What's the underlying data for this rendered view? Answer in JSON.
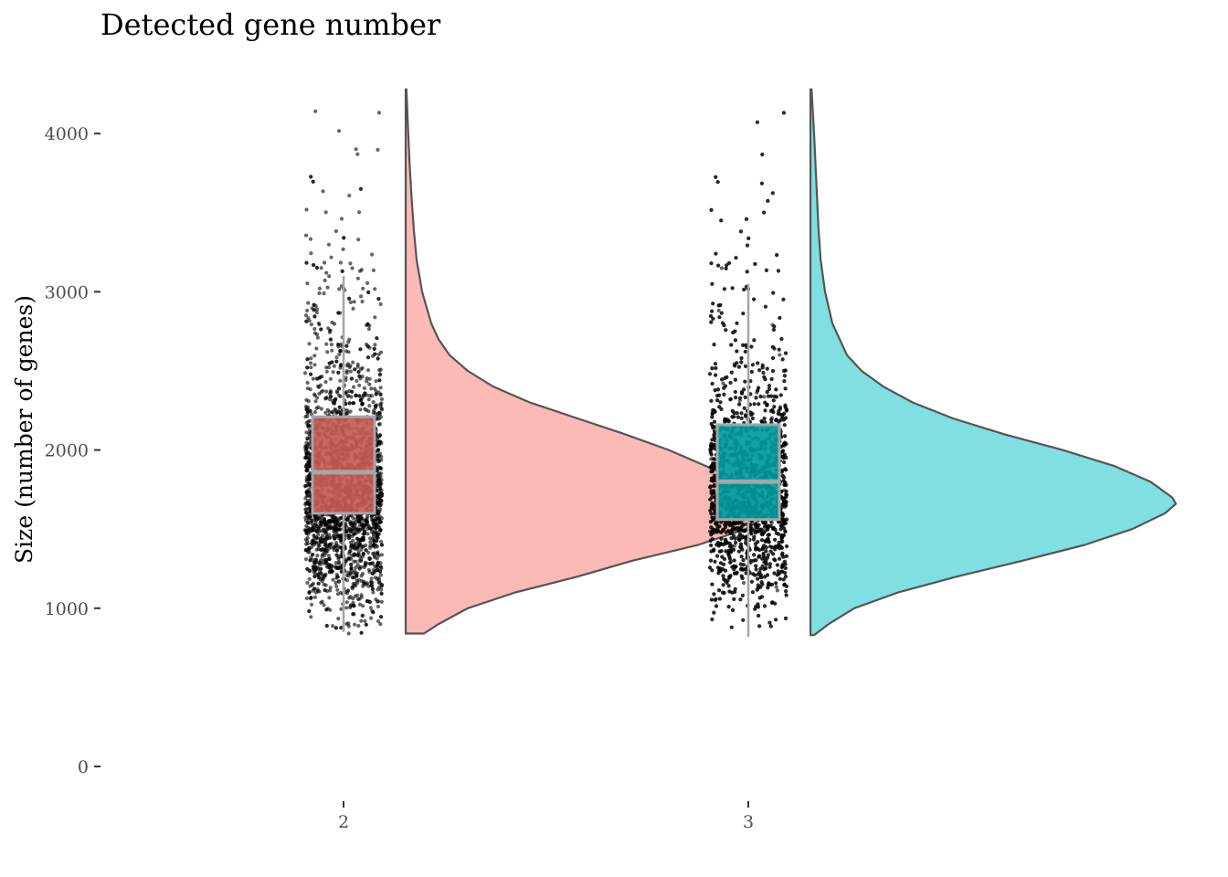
{
  "chart_data": {
    "type": "raincloud",
    "title": "Detected gene number",
    "xlabel": "",
    "ylabel": "Size (number of genes)",
    "ylim": [
      0,
      4300
    ],
    "yticks": [
      0,
      1000,
      2000,
      3000,
      4000
    ],
    "grid": false,
    "legend": "none",
    "categories": [
      "2",
      "3"
    ],
    "series": [
      {
        "category": "2",
        "color": "#f8766d",
        "box_fill": "#c65c56",
        "min": 850,
        "q1": 1600,
        "median": 1860,
        "q3": 2210,
        "max": 3100,
        "range": [
          840,
          4280
        ],
        "density": [
          [
            840,
            0.05
          ],
          [
            900,
            0.09
          ],
          [
            1000,
            0.17
          ],
          [
            1100,
            0.3
          ],
          [
            1200,
            0.47
          ],
          [
            1300,
            0.62
          ],
          [
            1400,
            0.8
          ],
          [
            1500,
            0.93
          ],
          [
            1600,
            1.0
          ],
          [
            1700,
            0.98
          ],
          [
            1800,
            0.92
          ],
          [
            1900,
            0.82
          ],
          [
            2000,
            0.72
          ],
          [
            2100,
            0.6
          ],
          [
            2200,
            0.47
          ],
          [
            2300,
            0.34
          ],
          [
            2400,
            0.24
          ],
          [
            2500,
            0.17
          ],
          [
            2600,
            0.12
          ],
          [
            2700,
            0.09
          ],
          [
            2800,
            0.07
          ],
          [
            3000,
            0.045
          ],
          [
            3200,
            0.03
          ],
          [
            3400,
            0.022
          ],
          [
            3600,
            0.016
          ],
          [
            3800,
            0.011
          ],
          [
            4000,
            0.007
          ],
          [
            4280,
            0.002
          ]
        ]
      },
      {
        "category": "3",
        "color": "#00bfc4",
        "box_fill": "#009a9e",
        "min": 820,
        "q1": 1560,
        "median": 1800,
        "q3": 2160,
        "max": 3050,
        "range": [
          830,
          4280
        ],
        "density": [
          [
            830,
            0.01
          ],
          [
            900,
            0.05
          ],
          [
            1000,
            0.12
          ],
          [
            1100,
            0.24
          ],
          [
            1200,
            0.4
          ],
          [
            1300,
            0.58
          ],
          [
            1400,
            0.75
          ],
          [
            1500,
            0.88
          ],
          [
            1600,
            0.97
          ],
          [
            1660,
            1.0
          ],
          [
            1700,
            0.99
          ],
          [
            1800,
            0.93
          ],
          [
            1900,
            0.83
          ],
          [
            2000,
            0.69
          ],
          [
            2100,
            0.53
          ],
          [
            2200,
            0.39
          ],
          [
            2300,
            0.28
          ],
          [
            2400,
            0.2
          ],
          [
            2500,
            0.14
          ],
          [
            2600,
            0.1
          ],
          [
            2700,
            0.08
          ],
          [
            2800,
            0.06
          ],
          [
            3000,
            0.04
          ],
          [
            3200,
            0.028
          ],
          [
            3400,
            0.022
          ],
          [
            3600,
            0.018
          ],
          [
            3800,
            0.014
          ],
          [
            4000,
            0.01
          ],
          [
            4280,
            0.003
          ]
        ]
      }
    ]
  }
}
